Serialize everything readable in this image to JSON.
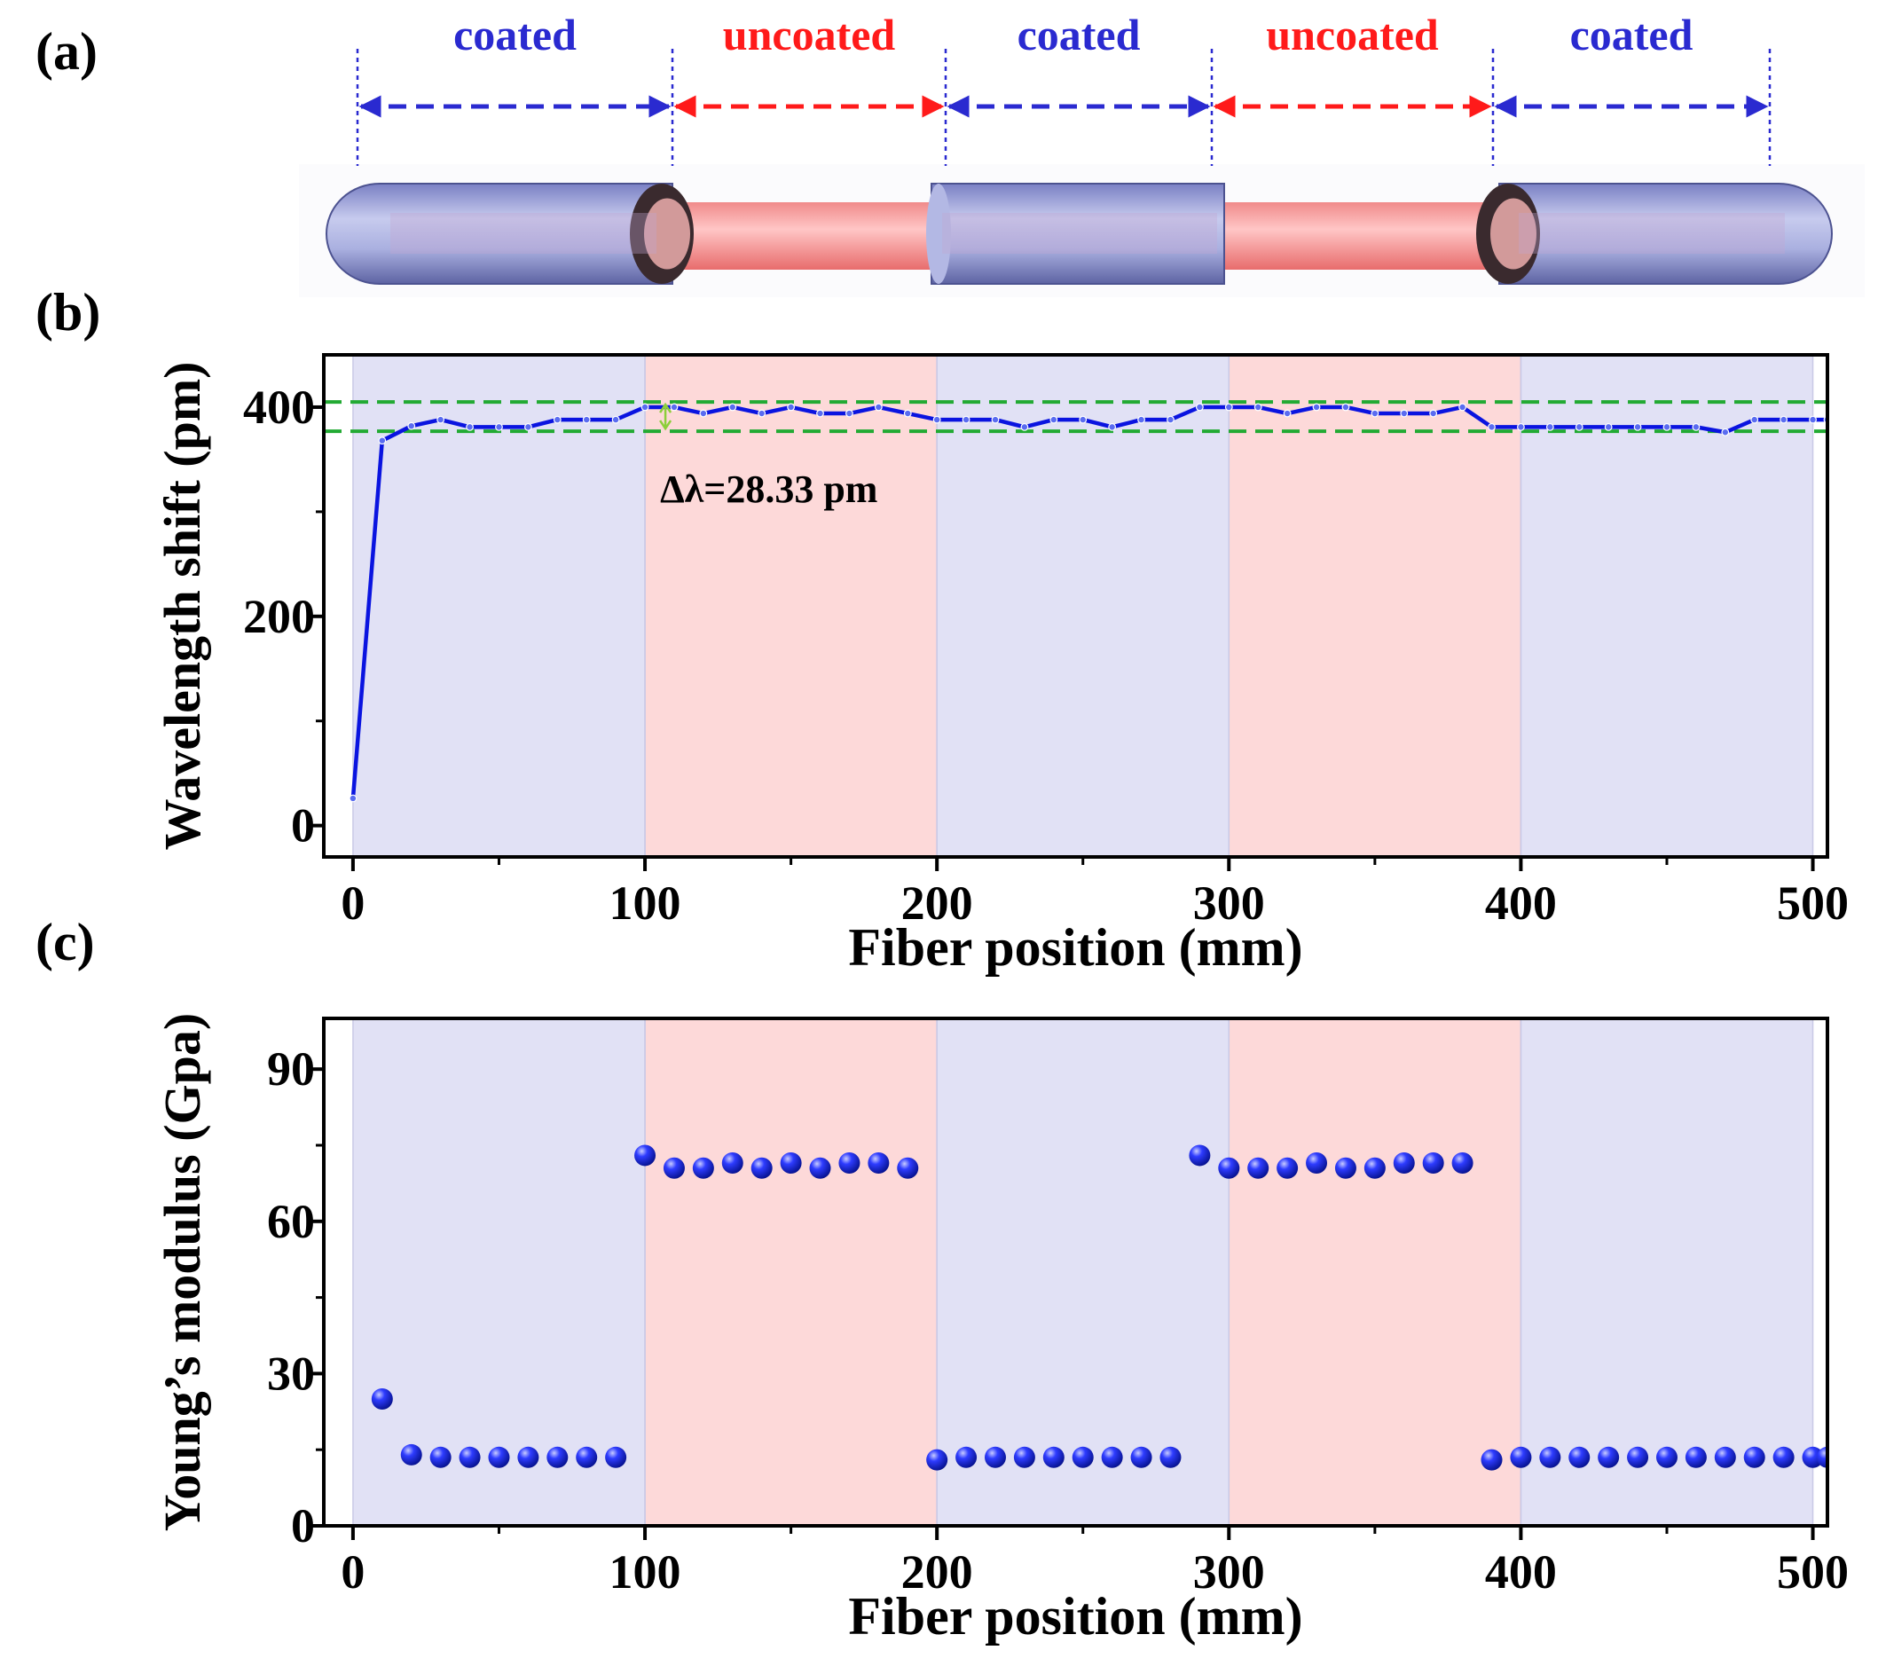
{
  "panel_labels": {
    "a": "(a)",
    "b": "(b)",
    "c": "(c)"
  },
  "colors": {
    "coated": "#2a2ad0",
    "uncoated": "#ff1a1a",
    "coated_band": "#e1e1f5",
    "uncoated_band": "#fdd9d9",
    "series": "#0a14e0",
    "reference_lines": "#22aa33",
    "axis": "#000000"
  },
  "schematic": {
    "segments": [
      {
        "label": "coated",
        "type": "coated"
      },
      {
        "label": "uncoated",
        "type": "uncoated"
      },
      {
        "label": "coated",
        "type": "coated"
      },
      {
        "label": "uncoated",
        "type": "uncoated"
      },
      {
        "label": "coated",
        "type": "coated"
      }
    ]
  },
  "chart_data": [
    {
      "type": "line",
      "panel": "(b)",
      "xlabel": "Fiber position (mm)",
      "ylabel": "Wavelength shift (pm)",
      "xlim": [
        -10,
        505
      ],
      "ylim": [
        -30,
        450
      ],
      "xticks": [
        0,
        100,
        200,
        300,
        400,
        500
      ],
      "yticks": [
        0,
        200,
        400
      ],
      "bands": [
        {
          "from": 0,
          "to": 100,
          "type": "coated"
        },
        {
          "from": 100,
          "to": 200,
          "type": "uncoated"
        },
        {
          "from": 200,
          "to": 300,
          "type": "coated"
        },
        {
          "from": 300,
          "to": 400,
          "type": "uncoated"
        },
        {
          "from": 400,
          "to": 500,
          "type": "coated"
        }
      ],
      "reference_lines": [
        405,
        377
      ],
      "annotation": {
        "text": "Δλ=28.33 pm",
        "at_x": 107
      },
      "series": [
        {
          "x": [
            0,
            10,
            20,
            30,
            40,
            50,
            60,
            70,
            80,
            90,
            100,
            110,
            120,
            130,
            140,
            150,
            160,
            170,
            180,
            190,
            200,
            210,
            220,
            230,
            240,
            250,
            260,
            270,
            280,
            290,
            300,
            310,
            320,
            330,
            340,
            350,
            360,
            370,
            380,
            390,
            400,
            410,
            420,
            430,
            440,
            450,
            460,
            470,
            480,
            490,
            500,
            505
          ],
          "values": [
            26,
            368,
            382,
            388,
            381,
            381,
            381,
            388,
            388,
            388,
            400,
            400,
            394,
            400,
            394,
            400,
            394,
            394,
            400,
            394,
            388,
            388,
            388,
            381,
            388,
            388,
            381,
            388,
            388,
            400,
            400,
            400,
            394,
            400,
            400,
            394,
            394,
            394,
            400,
            381,
            381,
            381,
            381,
            381,
            381,
            381,
            381,
            376,
            388,
            388,
            388,
            388
          ]
        }
      ]
    },
    {
      "type": "scatter",
      "panel": "(c)",
      "xlabel": "Fiber position (mm)",
      "ylabel": "Young’s modulus (Gpa)",
      "xlim": [
        -10,
        505
      ],
      "ylim": [
        0,
        100
      ],
      "xticks": [
        0,
        100,
        200,
        300,
        400,
        500
      ],
      "yticks": [
        0,
        30,
        60,
        90
      ],
      "bands": [
        {
          "from": 0,
          "to": 100,
          "type": "coated"
        },
        {
          "from": 100,
          "to": 200,
          "type": "uncoated"
        },
        {
          "from": 200,
          "to": 300,
          "type": "coated"
        },
        {
          "from": 300,
          "to": 400,
          "type": "uncoated"
        },
        {
          "from": 400,
          "to": 500,
          "type": "coated"
        }
      ],
      "series": [
        {
          "x": [
            10,
            20,
            30,
            40,
            50,
            60,
            70,
            80,
            90,
            100,
            110,
            120,
            130,
            140,
            150,
            160,
            170,
            180,
            190,
            200,
            210,
            220,
            230,
            240,
            250,
            260,
            270,
            280,
            290,
            300,
            310,
            320,
            330,
            340,
            350,
            360,
            370,
            380,
            390,
            400,
            410,
            420,
            430,
            440,
            450,
            460,
            470,
            480,
            490,
            500,
            505
          ],
          "values": [
            25,
            14,
            13.5,
            13.5,
            13.5,
            13.5,
            13.5,
            13.5,
            13.5,
            73,
            70.5,
            70.5,
            71.5,
            70.5,
            71.5,
            70.5,
            71.5,
            71.5,
            70.5,
            13,
            13.5,
            13.5,
            13.5,
            13.5,
            13.5,
            13.5,
            13.5,
            13.5,
            73,
            70.5,
            70.5,
            70.5,
            71.5,
            70.5,
            70.5,
            71.5,
            71.5,
            71.5,
            13,
            13.5,
            13.5,
            13.5,
            13.5,
            13.5,
            13.5,
            13.5,
            13.5,
            13.5,
            13.5,
            13.5,
            13.5
          ]
        }
      ]
    }
  ]
}
